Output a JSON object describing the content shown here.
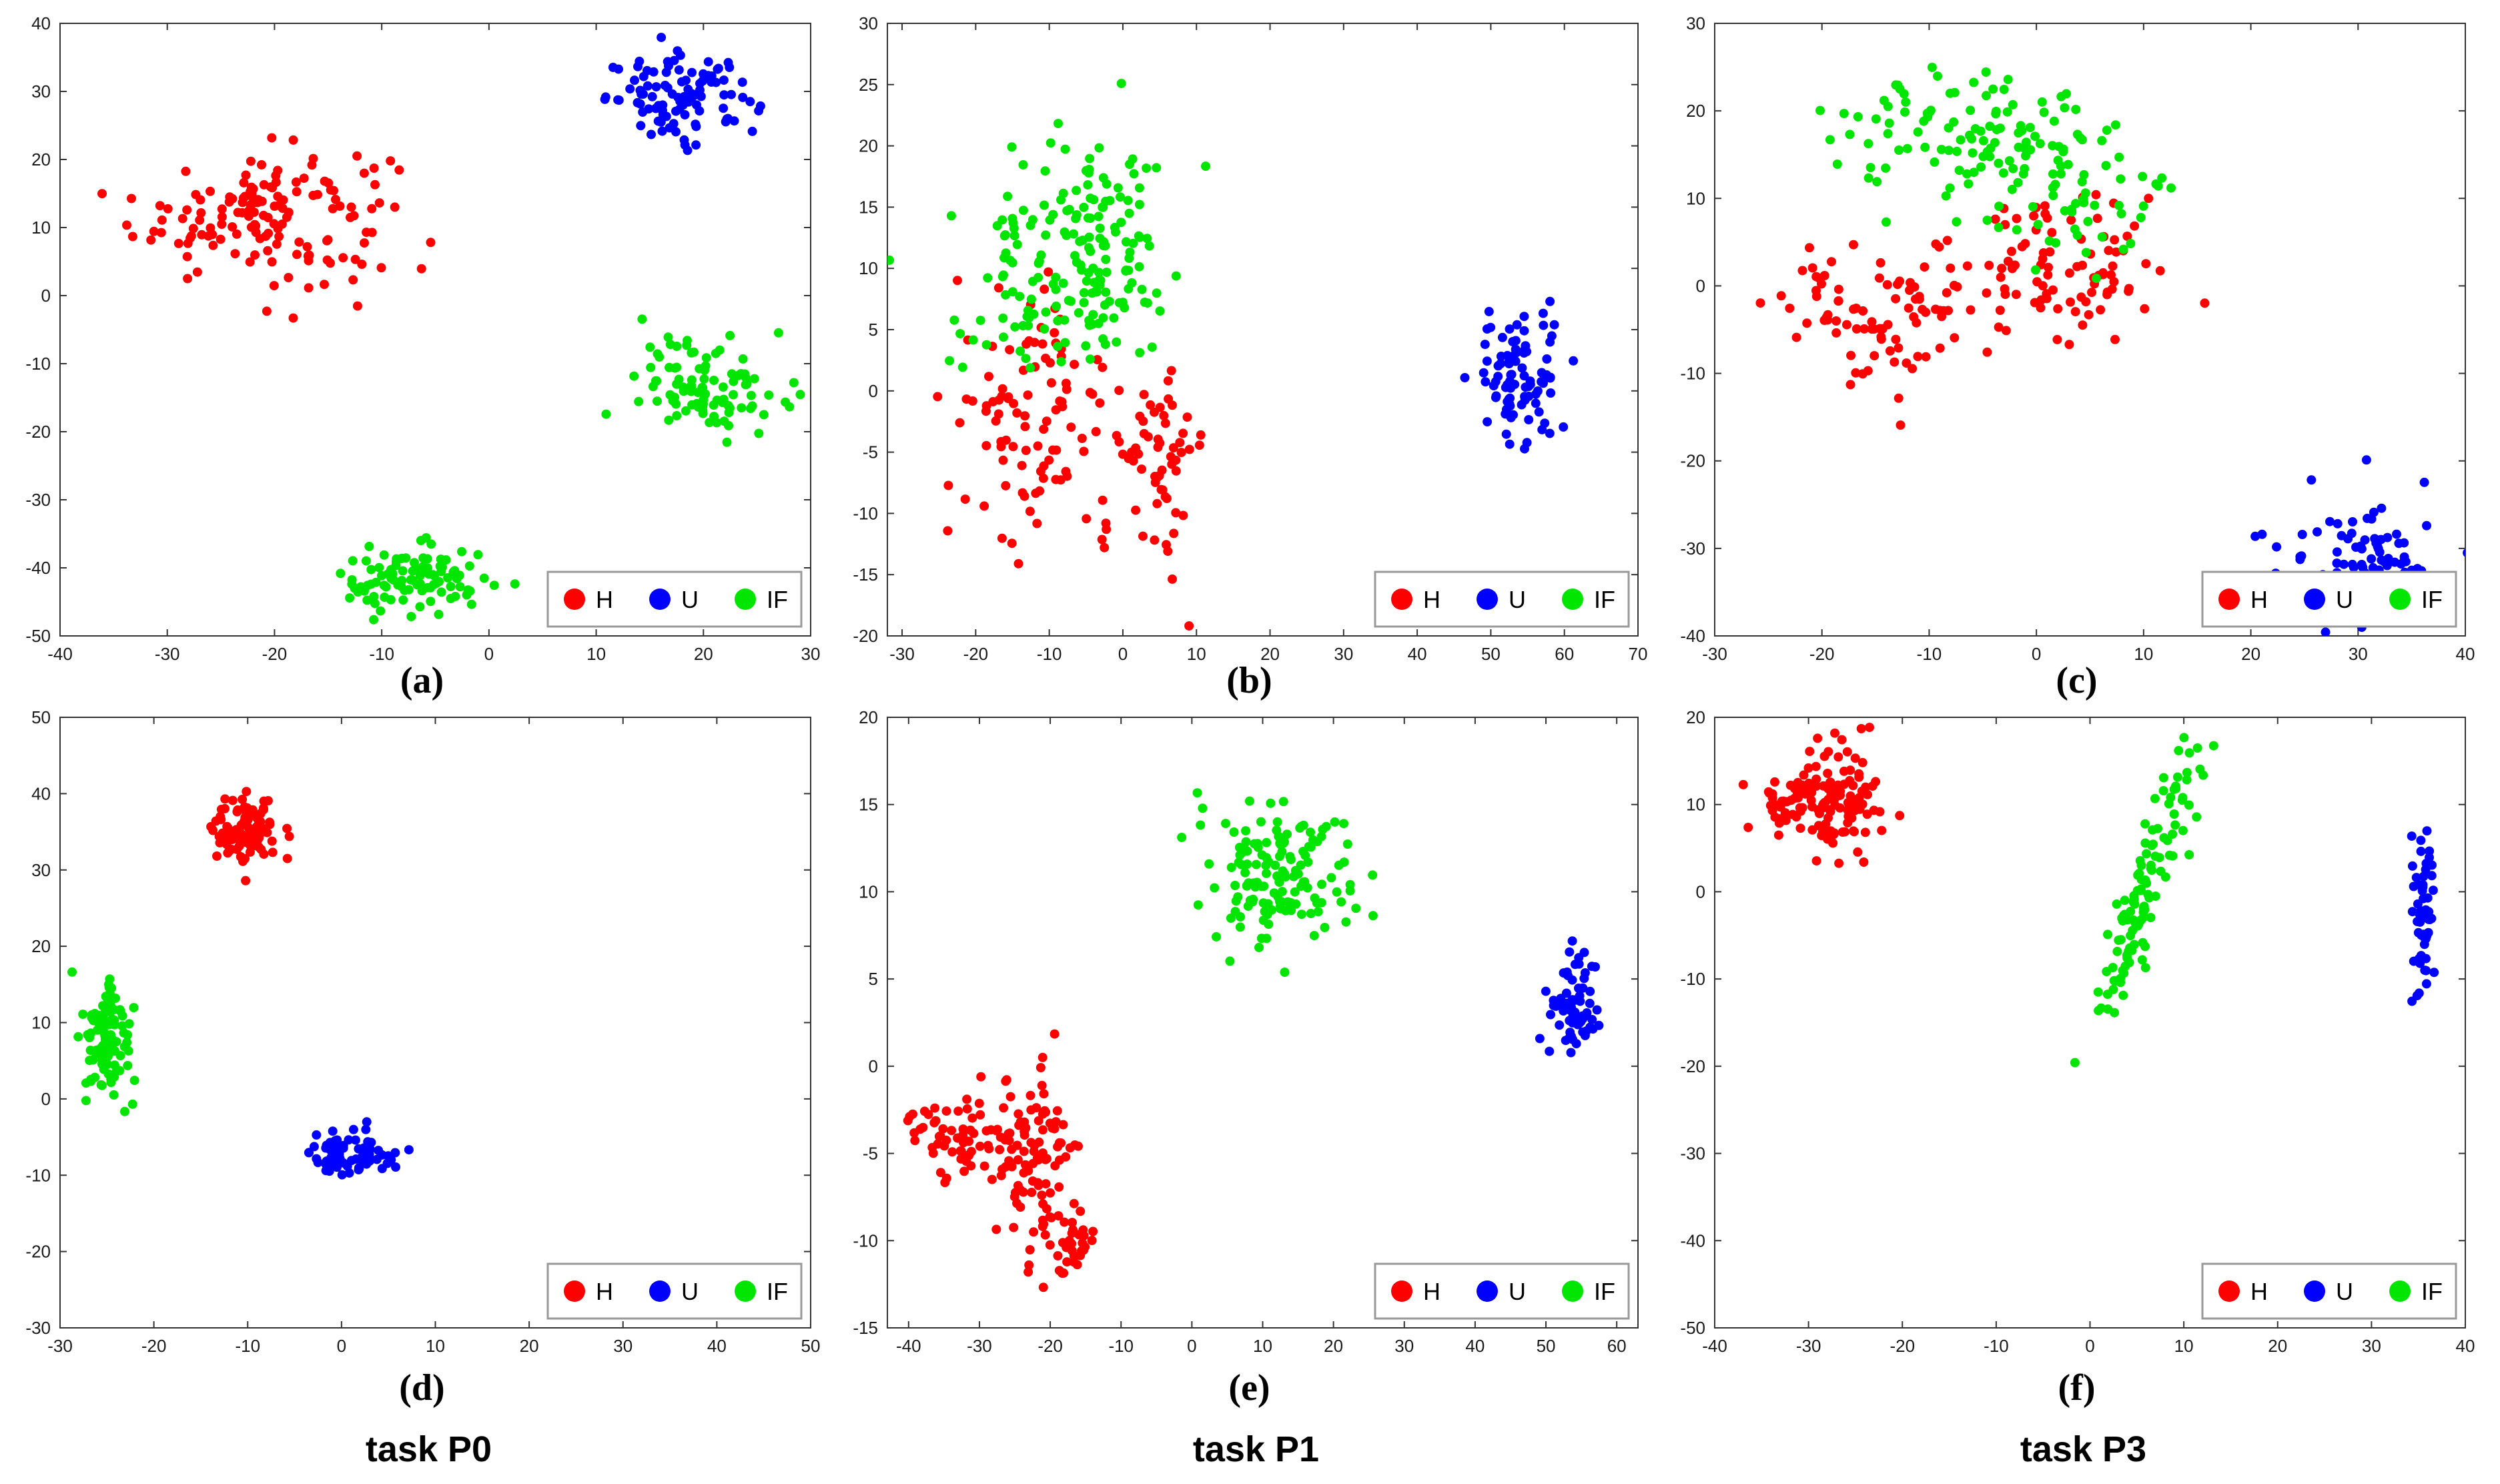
{
  "colors": {
    "H": "#ff0000",
    "U": "#0000ff",
    "IF": "#00e600"
  },
  "legend": {
    "H": "H",
    "U": "U",
    "IF": "IF"
  },
  "chart_data": [
    {
      "id": "a",
      "type": "scatter",
      "caption": "(a)",
      "task": "",
      "xlim": [
        -40,
        30
      ],
      "ylim": [
        -50,
        40
      ],
      "xticks": [
        "-40",
        "-30",
        "-20",
        "-10",
        "0",
        "10",
        "20",
        "30"
      ],
      "yticks": [
        "-50",
        "-40",
        "-30",
        "-20",
        "-10",
        "0",
        "10",
        "20",
        "30",
        "40"
      ],
      "clusters": [
        {
          "class": "H",
          "cx": -21,
          "cy": 12,
          "sx": 6,
          "sy": 5,
          "n": 150
        },
        {
          "class": "U",
          "cx": 18,
          "cy": 29,
          "sx": 3.5,
          "sy": 3,
          "n": 100
        },
        {
          "class": "IF",
          "cx": 21,
          "cy": -13,
          "sx": 3.5,
          "sy": 3.5,
          "n": 100
        },
        {
          "class": "IF",
          "cx": -7,
          "cy": -42,
          "sx": 3.5,
          "sy": 2.5,
          "n": 100
        }
      ]
    },
    {
      "id": "b",
      "type": "scatter",
      "caption": "(b)",
      "task": "",
      "xlim": [
        -32,
        70
      ],
      "ylim": [
        -20,
        30
      ],
      "xticks": [
        "-30",
        "-20",
        "-10",
        "0",
        "10",
        "20",
        "30",
        "40",
        "50",
        "60",
        "70"
      ],
      "yticks": [
        "-20",
        "-15",
        "-10",
        "-5",
        "0",
        "5",
        "10",
        "15",
        "20",
        "25",
        "30"
      ],
      "clusters": [
        {
          "class": "H",
          "cx": -13,
          "cy": -2,
          "sx": 5,
          "sy": 5,
          "n": 90
        },
        {
          "class": "H",
          "cx": 4,
          "cy": -5,
          "sx": 4,
          "sy": 4,
          "n": 70
        },
        {
          "class": "IF",
          "cx": -10,
          "cy": 10,
          "sx": 7,
          "sy": 5,
          "n": 130
        },
        {
          "class": "IF",
          "cx": -2,
          "cy": 12,
          "sx": 3,
          "sy": 4,
          "n": 60
        },
        {
          "class": "U",
          "cx": 54,
          "cy": 1,
          "sx": 3,
          "sy": 2.5,
          "n": 90
        }
      ]
    },
    {
      "id": "c",
      "type": "scatter",
      "caption": "(c)",
      "task": "",
      "xlim": [
        -30,
        40
      ],
      "ylim": [
        -40,
        30
      ],
      "xticks": [
        "-30",
        "-20",
        "-10",
        "0",
        "10",
        "20",
        "30",
        "40"
      ],
      "yticks": [
        "-40",
        "-30",
        "-20",
        "-10",
        "0",
        "10",
        "20",
        "30"
      ],
      "clusters": [
        {
          "class": "H",
          "cx": -14,
          "cy": -3,
          "sx": 5,
          "sy": 4,
          "n": 90
        },
        {
          "class": "H",
          "cx": 3,
          "cy": 2,
          "sx": 5,
          "sy": 4,
          "n": 90
        },
        {
          "class": "IF",
          "cx": -8,
          "cy": 18,
          "sx": 5,
          "sy": 4,
          "n": 80
        },
        {
          "class": "IF",
          "cx": 3,
          "cy": 12,
          "sx": 5,
          "sy": 5,
          "n": 80
        },
        {
          "class": "U",
          "cx": 30,
          "cy": -31,
          "sx": 3.5,
          "sy": 3.5,
          "n": 90
        }
      ]
    },
    {
      "id": "d",
      "type": "scatter",
      "caption": "(d)",
      "task": "task P0",
      "xlim": [
        -30,
        50
      ],
      "ylim": [
        -30,
        50
      ],
      "xticks": [
        "-30",
        "-20",
        "-10",
        "0",
        "10",
        "20",
        "30",
        "40",
        "50"
      ],
      "yticks": [
        "-30",
        "-20",
        "-10",
        "0",
        "10",
        "20",
        "30",
        "40",
        "50"
      ],
      "clusters": [
        {
          "class": "H",
          "cx": -10,
          "cy": 35,
          "sx": 1.8,
          "sy": 2.5,
          "n": 90
        },
        {
          "class": "IF",
          "cx": -25,
          "cy": 8,
          "sx": 1.3,
          "sy": 4,
          "n": 110
        },
        {
          "class": "U",
          "cx": 1,
          "cy": -7,
          "sx": 3,
          "sy": 1.5,
          "n": 70
        }
      ]
    },
    {
      "id": "e",
      "type": "scatter",
      "caption": "(e)",
      "task": "task P1",
      "xlim": [
        -43,
        63
      ],
      "ylim": [
        -15,
        20
      ],
      "xticks": [
        "-40",
        "-30",
        "-20",
        "-10",
        "0",
        "10",
        "20",
        "30",
        "40",
        "50",
        "60"
      ],
      "yticks": [
        "-15",
        "-10",
        "-5",
        "0",
        "5",
        "10",
        "15",
        "20"
      ],
      "clusters": [
        {
          "class": "IF",
          "cx": 12,
          "cy": 11,
          "sx": 5,
          "sy": 2,
          "n": 150
        },
        {
          "class": "H",
          "cx": -32,
          "cy": -4,
          "sx": 4,
          "sy": 1,
          "n": 70
        },
        {
          "class": "H",
          "cx": -22,
          "cy": -5,
          "sx": 2.5,
          "sy": 3,
          "n": 90
        },
        {
          "class": "H",
          "cx": -17,
          "cy": -10,
          "sx": 1.5,
          "sy": 1,
          "n": 30
        },
        {
          "class": "U",
          "cx": 54,
          "cy": 3.5,
          "sx": 1.8,
          "sy": 1.5,
          "n": 70
        }
      ]
    },
    {
      "id": "f",
      "type": "scatter",
      "caption": "(f)",
      "task": "task P3",
      "xlim": [
        -40,
        40
      ],
      "ylim": [
        -50,
        20
      ],
      "xticks": [
        "-40",
        "-30",
        "-20",
        "-10",
        "0",
        "10",
        "20",
        "30",
        "40"
      ],
      "yticks": [
        "-50",
        "-40",
        "-30",
        "-20",
        "-10",
        "0",
        "10",
        "20"
      ],
      "clusters": [
        {
          "class": "H",
          "cx": -31,
          "cy": 10,
          "sx": 2.5,
          "sy": 2,
          "n": 60
        },
        {
          "class": "H",
          "cx": -26,
          "cy": 11,
          "sx": 1.8,
          "sy": 4,
          "n": 80
        },
        {
          "class": "IF",
          "cx": 6,
          "cy": 1,
          "sx": 1.2,
          "sy": 9,
          "n": 120,
          "slope": 0.3
        },
        {
          "class": "U",
          "cx": 35.5,
          "cy": -3,
          "sx": 0.6,
          "sy": 4.5,
          "n": 60
        }
      ]
    }
  ]
}
